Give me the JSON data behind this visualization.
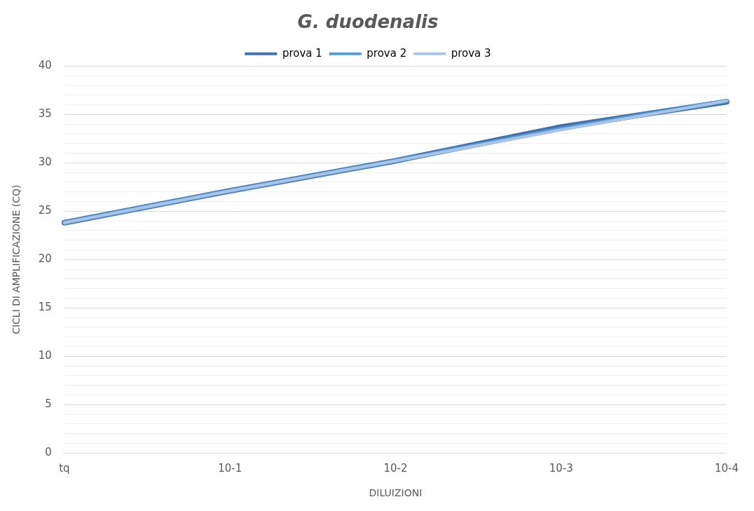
{
  "chart_data": {
    "type": "line",
    "title": "G. duodenalis",
    "xlabel": "DILUIZIONI",
    "ylabel": "CICLI DI AMPLIFICAZIONE (CQ)",
    "categories": [
      "tq",
      "10-1",
      "10-2",
      "10-3",
      "10-4"
    ],
    "series": [
      {
        "name": "prova 1",
        "color": "#4472a8",
        "values": [
          23.8,
          27.1,
          30.2,
          33.7,
          36.3
        ]
      },
      {
        "name": "prova 2",
        "color": "#5b9bd5",
        "values": [
          23.8,
          27.1,
          30.2,
          33.5,
          36.4
        ]
      },
      {
        "name": "prova 3",
        "color": "#a9c4e6",
        "values": [
          23.8,
          27.1,
          30.2,
          33.4,
          36.4
        ]
      }
    ],
    "ylim": [
      0,
      40
    ],
    "yticks": [
      0,
      {
        "value": 1,
        "label": null
      },
      {
        "value": 2,
        "label": null
      },
      {
        "value": 3,
        "label": null
      },
      {
        "value": 4,
        "label": null
      },
      5,
      {
        "value": 6,
        "label": null
      },
      {
        "value": 7,
        "label": null
      },
      {
        "value": 8,
        "label": null
      },
      {
        "value": 9,
        "label": null
      },
      10,
      {
        "value": 11,
        "label": null
      },
      {
        "value": 12,
        "label": null
      },
      {
        "value": 13,
        "label": null
      },
      {
        "value": 14,
        "label": null
      },
      15,
      {
        "value": 16,
        "label": null
      },
      {
        "value": 17,
        "label": null
      },
      {
        "value": 18,
        "label": null
      },
      {
        "value": 19,
        "label": null
      },
      20,
      {
        "value": 21,
        "label": null
      },
      {
        "value": 22,
        "label": null
      },
      {
        "value": 23,
        "label": null
      },
      {
        "value": 24,
        "label": null
      },
      25,
      {
        "value": 26,
        "label": null
      },
      {
        "value": 27,
        "label": null
      },
      {
        "value": 28,
        "label": null
      },
      {
        "value": 29,
        "label": null
      },
      30,
      {
        "value": 31,
        "label": null
      },
      {
        "value": 32,
        "label": null
      },
      {
        "value": 33,
        "label": null
      },
      {
        "value": 34,
        "label": null
      },
      35,
      {
        "value": 36,
        "label": null
      },
      {
        "value": 37,
        "label": null
      },
      {
        "value": 38,
        "label": null
      },
      {
        "value": 39,
        "label": null
      },
      40
    ],
    "grid": "y",
    "legend": "top",
    "marker": "none",
    "line_style": "solid"
  }
}
